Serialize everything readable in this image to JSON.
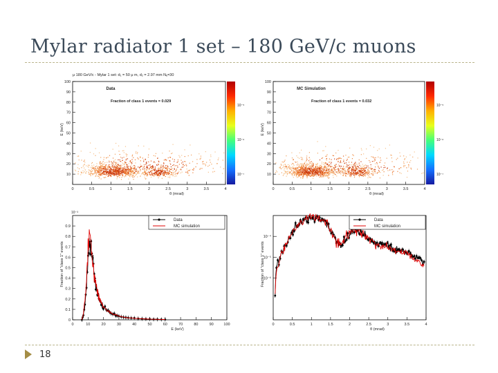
{
  "slide": {
    "title": "Mylar radiator 1 set – 180 GeV/c muons",
    "page_number": "18"
  },
  "chart_data": [
    {
      "type": "scatter",
      "panel": "top-left",
      "title": "μ 180 GeV/c - Mylar 1 set: d₁ = 50 μ m, d₂ = 2.97 mm Nₑ=30",
      "label": "Data",
      "annotation": "Fraction of class 1 events = 0.029",
      "xlabel": "θ (mrad)",
      "ylabel": "E (keV)",
      "xlim": [
        0,
        4
      ],
      "ylim": [
        0,
        100
      ],
      "xticks": [
        "0",
        "0.5",
        "1",
        "1.5",
        "2",
        "2.5",
        "3",
        "3.5",
        "4"
      ],
      "yticks": [
        "10",
        "20",
        "30",
        "40",
        "50",
        "60",
        "70",
        "80",
        "90",
        "100"
      ],
      "colorbar_ticks": [
        "10⁻⁵",
        "10⁻⁶",
        "10⁻⁷"
      ],
      "clusters": [
        {
          "x": 1.05,
          "y": 13,
          "sx": 0.35,
          "sy": 4,
          "n": 700
        },
        {
          "x": 2.25,
          "y": 12,
          "sx": 0.25,
          "sy": 3.5,
          "n": 250
        },
        {
          "x": 1.8,
          "y": 18,
          "sx": 1.2,
          "sy": 8,
          "n": 450
        }
      ]
    },
    {
      "type": "scatter",
      "panel": "top-right",
      "label": "MC Simulation",
      "annotation": "Fraction of class 1 events = 0.032",
      "xlabel": "θ (mrad)",
      "ylabel": "E (keV)",
      "xlim": [
        0,
        4
      ],
      "ylim": [
        0,
        100
      ],
      "xticks": [
        "0",
        "0.5",
        "1",
        "1.5",
        "2",
        "2.5",
        "3",
        "3.5",
        "4"
      ],
      "yticks": [
        "10",
        "20",
        "30",
        "40",
        "50",
        "60",
        "70",
        "80",
        "90",
        "100"
      ],
      "colorbar_ticks": [
        "10⁻⁵",
        "10⁻⁶",
        "10⁻⁷"
      ],
      "clusters": [
        {
          "x": 1.0,
          "y": 13,
          "sx": 0.32,
          "sy": 4,
          "n": 800
        },
        {
          "x": 2.2,
          "y": 12,
          "sx": 0.25,
          "sy": 3.5,
          "n": 260
        },
        {
          "x": 1.8,
          "y": 18,
          "sx": 1.2,
          "sy": 8,
          "n": 420
        }
      ]
    },
    {
      "type": "line",
      "panel": "bottom-left",
      "xlabel": "E (keV)",
      "ylabel": "Fraction of \"class 1\" events",
      "exponent_label": "10⁻³",
      "xlim": [
        0,
        100
      ],
      "ylim": [
        0,
        1.0
      ],
      "xticks": [
        "0",
        "10",
        "20",
        "30",
        "40",
        "50",
        "60",
        "70",
        "80",
        "90",
        "100"
      ],
      "yticks": [
        "0",
        "0.1",
        "0.2",
        "0.3",
        "0.4",
        "0.5",
        "0.6",
        "0.7",
        "0.8",
        "0.9"
      ],
      "legend": [
        "Data",
        "MC simulation"
      ],
      "series": [
        {
          "name": "Data",
          "x": [
            6,
            7,
            8,
            9,
            10,
            11,
            12,
            13,
            14,
            15,
            16,
            17,
            18,
            19,
            20,
            22,
            24,
            26,
            28,
            30,
            33,
            36,
            40,
            45,
            50,
            55,
            60
          ],
          "values": [
            0.0,
            0.05,
            0.15,
            0.32,
            0.55,
            0.74,
            0.7,
            0.55,
            0.42,
            0.33,
            0.27,
            0.22,
            0.18,
            0.15,
            0.12,
            0.09,
            0.07,
            0.055,
            0.045,
            0.035,
            0.025,
            0.02,
            0.014,
            0.01,
            0.007,
            0.005,
            0.003
          ]
        },
        {
          "name": "MC simulation",
          "x": [
            6,
            7,
            8,
            9,
            10,
            11,
            12,
            13,
            14,
            15,
            16,
            17,
            18,
            19,
            20,
            22,
            24,
            26,
            28,
            30,
            33,
            36,
            40,
            45,
            50,
            55,
            60
          ],
          "values": [
            0.0,
            0.06,
            0.2,
            0.42,
            0.65,
            0.82,
            0.74,
            0.58,
            0.44,
            0.34,
            0.28,
            0.23,
            0.19,
            0.15,
            0.12,
            0.09,
            0.07,
            0.055,
            0.045,
            0.035,
            0.025,
            0.02,
            0.014,
            0.01,
            0.007,
            0.005,
            0.003
          ]
        }
      ]
    },
    {
      "type": "line",
      "panel": "bottom-right",
      "xlabel": "θ (mrad)",
      "ylabel": "Fraction of \"class 1\" events",
      "yscale": "log",
      "ylim": [
        1e-08,
        0.001
      ],
      "xlim": [
        0,
        4
      ],
      "xticks": [
        "0",
        "0.5",
        "1",
        "1.5",
        "2",
        "2.5",
        "3",
        "3.5",
        "4"
      ],
      "yticks": [
        "10⁻⁴",
        "10⁻⁵",
        "10⁻⁶"
      ],
      "legend": [
        "Data",
        "MC simulation"
      ],
      "series": [
        {
          "name": "Data",
          "x": [
            0.05,
            0.15,
            0.25,
            0.35,
            0.45,
            0.55,
            0.65,
            0.75,
            0.85,
            0.95,
            1.05,
            1.15,
            1.25,
            1.35,
            1.45,
            1.55,
            1.65,
            1.75,
            1.85,
            1.95,
            2.05,
            2.15,
            2.25,
            2.35,
            2.45,
            2.55,
            2.65,
            2.75,
            2.85,
            2.95,
            3.05,
            3.15,
            3.25,
            3.35,
            3.45,
            3.55,
            3.65,
            3.75,
            3.85,
            3.95
          ],
          "values": [
            1e-07,
            6e-06,
            2e-05,
            5e-05,
            0.0001,
            0.00022,
            0.00035,
            0.0005,
            0.00065,
            0.00075,
            0.0008,
            0.00075,
            0.00065,
            0.0005,
            0.0003,
            0.00014,
            6e-05,
            4e-05,
            5e-05,
            0.0001,
            0.00017,
            0.0002,
            0.00018,
            0.00014,
            0.0001,
            7e-05,
            5e-05,
            4.5e-05,
            4e-05,
            3.5e-05,
            3e-05,
            2.5e-05,
            2.2e-05,
            2e-05,
            1.8e-05,
            1.5e-05,
            1.2e-05,
            1e-05,
            8e-06,
            6e-06
          ]
        },
        {
          "name": "MC simulation",
          "x": [
            0.05,
            0.15,
            0.25,
            0.35,
            0.45,
            0.55,
            0.65,
            0.75,
            0.85,
            0.95,
            1.05,
            1.15,
            1.25,
            1.35,
            1.45,
            1.55,
            1.65,
            1.75,
            1.85,
            1.95,
            2.05,
            2.15,
            2.25,
            2.35,
            2.45,
            2.55,
            2.65,
            2.75,
            2.85,
            2.95,
            3.05,
            3.15,
            3.25,
            3.35,
            3.45,
            3.55,
            3.65,
            3.75,
            3.85,
            3.95
          ],
          "values": [
            2e-07,
            5e-06,
            1.8e-05,
            4.5e-05,
            0.0001,
            0.00023,
            0.00038,
            0.00053,
            0.00068,
            0.00078,
            0.00082,
            0.00078,
            0.00066,
            0.00048,
            0.00028,
            0.00013,
            5.5e-05,
            3.8e-05,
            5.5e-05,
            0.00011,
            0.00018,
            0.00021,
            0.00018,
            0.00013,
            9e-05,
            6e-05,
            4.5e-05,
            4e-05,
            3.5e-05,
            3e-05,
            2.8e-05,
            2.2e-05,
            2e-05,
            1.8e-05,
            1.5e-05,
            1.3e-05,
            1e-05,
            8e-06,
            6e-06,
            4e-06
          ]
        }
      ]
    }
  ]
}
